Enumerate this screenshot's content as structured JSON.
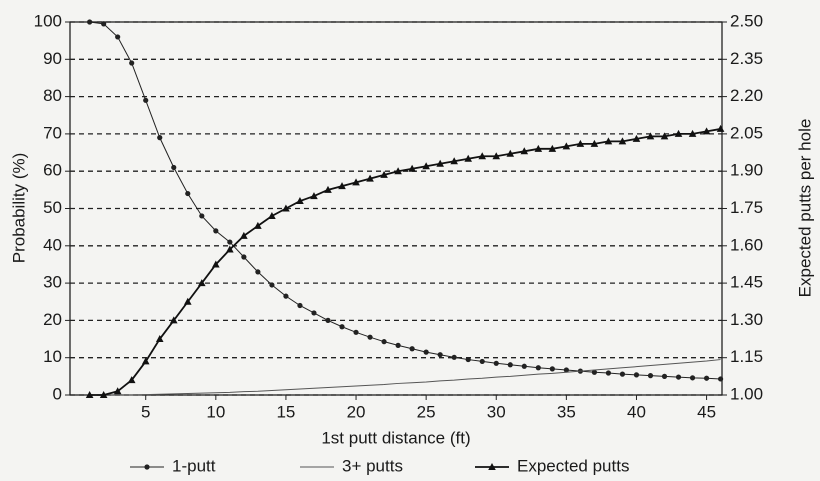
{
  "chart_data": {
    "type": "line",
    "xlabel": "1st putt distance (ft)",
    "ylabel": "Probability (%)",
    "y2label": "Expected putts per hole",
    "x": [
      1,
      2,
      3,
      4,
      5,
      6,
      7,
      8,
      9,
      10,
      11,
      12,
      13,
      14,
      15,
      16,
      17,
      18,
      19,
      20,
      21,
      22,
      23,
      24,
      25,
      26,
      27,
      28,
      29,
      30,
      31,
      32,
      33,
      34,
      35,
      36,
      37,
      38,
      39,
      40,
      41,
      42,
      43,
      44,
      45,
      46
    ],
    "xlim": [
      -0.4,
      46.1
    ],
    "xticks": [
      5,
      10,
      15,
      20,
      25,
      30,
      35,
      40,
      45
    ],
    "ylim": [
      0,
      100
    ],
    "yticks": [
      0,
      10,
      20,
      30,
      40,
      50,
      60,
      70,
      80,
      90,
      100
    ],
    "y2lim": [
      1.0,
      2.5
    ],
    "y2ticks": [
      {
        "value": 1.0,
        "label": "1.00"
      },
      {
        "value": 1.15,
        "label": "1.15"
      },
      {
        "value": 1.3,
        "label": "1.30"
      },
      {
        "value": 1.45,
        "label": "1.45"
      },
      {
        "value": 1.6,
        "label": "1.60"
      },
      {
        "value": 1.75,
        "label": "1.75"
      },
      {
        "value": 1.9,
        "label": "1.90"
      },
      {
        "value": 2.05,
        "label": "2.05"
      },
      {
        "value": 2.2,
        "label": "2.20"
      },
      {
        "value": 2.35,
        "label": "2.35"
      },
      {
        "value": 2.5,
        "label": "2.50"
      }
    ],
    "grid": true,
    "legend": "bottom",
    "series": [
      {
        "name": "1-putt",
        "color": "#222222",
        "marker": "dot",
        "width": 1,
        "values": [
          100,
          99.5,
          96,
          89,
          79,
          69,
          61,
          54,
          48,
          44,
          41,
          37,
          33,
          29.5,
          26.5,
          24,
          22,
          20,
          18.3,
          16.8,
          15.5,
          14.3,
          13.3,
          12.4,
          11.5,
          10.8,
          10.1,
          9.5,
          9,
          8.5,
          8.1,
          7.7,
          7.3,
          7,
          6.7,
          6.4,
          6.1,
          5.9,
          5.6,
          5.4,
          5.2,
          5,
          4.8,
          4.6,
          4.5,
          4.3
        ]
      },
      {
        "name": "3+ putts",
        "color": "#555555",
        "marker": "none",
        "width": 1,
        "values": [
          0,
          0,
          0,
          0,
          0.1,
          0.2,
          0.3,
          0.4,
          0.5,
          0.6,
          0.7,
          0.9,
          1,
          1.2,
          1.4,
          1.6,
          1.8,
          2,
          2.2,
          2.4,
          2.6,
          2.8,
          3.1,
          3.3,
          3.5,
          3.8,
          4,
          4.3,
          4.5,
          4.8,
          5,
          5.3,
          5.6,
          5.8,
          6.1,
          6.4,
          6.7,
          7,
          7.3,
          7.6,
          7.9,
          8.2,
          8.5,
          8.8,
          9.1,
          9.5
        ]
      },
      {
        "name": "Expected putts",
        "color": "#111111",
        "marker": "triangle",
        "width": 1.8,
        "axis": "y2",
        "values": [
          1.0,
          1.0,
          1.015,
          1.06,
          1.135,
          1.225,
          1.3,
          1.375,
          1.45,
          1.525,
          1.585,
          1.64,
          1.68,
          1.72,
          1.75,
          1.78,
          1.8,
          1.825,
          1.84,
          1.855,
          1.87,
          1.885,
          1.9,
          1.91,
          1.92,
          1.93,
          1.94,
          1.95,
          1.96,
          1.96,
          1.97,
          1.98,
          1.99,
          1.99,
          2.0,
          2.01,
          2.01,
          2.02,
          2.02,
          2.03,
          2.04,
          2.04,
          2.05,
          2.05,
          2.06,
          2.07
        ]
      }
    ]
  }
}
